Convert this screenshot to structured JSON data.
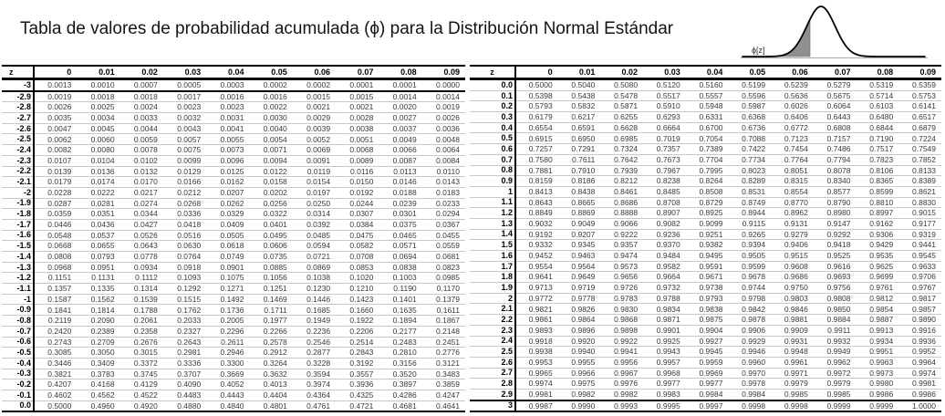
{
  "title": "Tabla de valores de probabilidad acumulada (ϕ) para la Distribución Normal Estándar",
  "curve": {
    "label": "ϕ[z]"
  },
  "tables": {
    "negative": {
      "headers": [
        "z",
        "0",
        "0.01",
        "0.02",
        "0.03",
        "0.04",
        "0.05",
        "0.06",
        "0.07",
        "0.08",
        "0.09"
      ],
      "rows": [
        {
          "z": "-3",
          "divider": "below",
          "v": [
            "0.0013",
            "0.0010",
            "0.0007",
            "0.0005",
            "0.0003",
            "0.0002",
            "0.0002",
            "0.0001",
            "0.0001",
            "0.0000"
          ]
        },
        {
          "z": "-2.9",
          "v": [
            "0.0019",
            "0.0018",
            "0.0018",
            "0.0017",
            "0.0016",
            "0.0016",
            "0.0015",
            "0.0015",
            "0.0014",
            "0.0014"
          ]
        },
        {
          "z": "-2.8",
          "v": [
            "0.0026",
            "0.0025",
            "0.0024",
            "0.0023",
            "0.0023",
            "0.0022",
            "0.0021",
            "0.0021",
            "0.0020",
            "0.0019"
          ]
        },
        {
          "z": "-2.7",
          "v": [
            "0.0035",
            "0.0034",
            "0.0033",
            "0.0032",
            "0.0031",
            "0.0030",
            "0.0029",
            "0.0028",
            "0.0027",
            "0.0026"
          ]
        },
        {
          "z": "-2.6",
          "v": [
            "0.0047",
            "0.0045",
            "0.0044",
            "0.0043",
            "0.0041",
            "0.0040",
            "0.0039",
            "0.0038",
            "0.0037",
            "0.0036"
          ]
        },
        {
          "z": "-2.5",
          "v": [
            "0.0062",
            "0.0060",
            "0.0059",
            "0.0057",
            "0.0055",
            "0.0054",
            "0.0052",
            "0.0051",
            "0.0049",
            "0.0048"
          ]
        },
        {
          "z": "-2.4",
          "v": [
            "0.0082",
            "0.0080",
            "0.0078",
            "0.0075",
            "0.0073",
            "0.0071",
            "0.0069",
            "0.0068",
            "0.0066",
            "0.0064"
          ]
        },
        {
          "z": "-2.3",
          "v": [
            "0.0107",
            "0.0104",
            "0.0102",
            "0.0099",
            "0.0096",
            "0.0094",
            "0.0091",
            "0.0089",
            "0.0087",
            "0.0084"
          ]
        },
        {
          "z": "-2.2",
          "v": [
            "0.0139",
            "0.0136",
            "0.0132",
            "0.0129",
            "0.0125",
            "0.0122",
            "0.0119",
            "0.0116",
            "0.0113",
            "0.0110"
          ]
        },
        {
          "z": "-2.1",
          "v": [
            "0.0179",
            "0.0174",
            "0.0170",
            "0.0166",
            "0.0162",
            "0.0158",
            "0.0154",
            "0.0150",
            "0.0146",
            "0.0143"
          ]
        },
        {
          "z": "-2",
          "v": [
            "0.0228",
            "0.0222",
            "0.0217",
            "0.0212",
            "0.0207",
            "0.0202",
            "0.0197",
            "0.0192",
            "0.0188",
            "0.0183"
          ]
        },
        {
          "z": "-1.9",
          "v": [
            "0.0287",
            "0.0281",
            "0.0274",
            "0.0268",
            "0.0262",
            "0.0256",
            "0.0250",
            "0.0244",
            "0.0239",
            "0.0233"
          ]
        },
        {
          "z": "-1.8",
          "v": [
            "0.0359",
            "0.0351",
            "0.0344",
            "0.0336",
            "0.0329",
            "0.0322",
            "0.0314",
            "0.0307",
            "0.0301",
            "0.0294"
          ]
        },
        {
          "z": "-1.7",
          "v": [
            "0.0446",
            "0.0436",
            "0.0427",
            "0.0418",
            "0.0409",
            "0.0401",
            "0.0392",
            "0.0384",
            "0.0375",
            "0.0367"
          ]
        },
        {
          "z": "-1.6",
          "v": [
            "0.0548",
            "0.0537",
            "0.0526",
            "0.0516",
            "0.0505",
            "0.0495",
            "0.0485",
            "0.0475",
            "0.0465",
            "0.0455"
          ]
        },
        {
          "z": "-1.5",
          "v": [
            "0.0668",
            "0.0655",
            "0.0643",
            "0.0630",
            "0.0618",
            "0.0606",
            "0.0594",
            "0.0582",
            "0.0571",
            "0.0559"
          ]
        },
        {
          "z": "-1.4",
          "v": [
            "0.0808",
            "0.0793",
            "0.0778",
            "0.0764",
            "0.0749",
            "0.0735",
            "0.0721",
            "0.0708",
            "0.0694",
            "0.0681"
          ]
        },
        {
          "z": "-1.3",
          "v": [
            "0.0968",
            "0.0951",
            "0.0934",
            "0.0918",
            "0.0901",
            "0.0885",
            "0.0869",
            "0.0853",
            "0.0838",
            "0.0823"
          ]
        },
        {
          "z": "-1.2",
          "v": [
            "0.1151",
            "0.1131",
            "0.1112",
            "0.1093",
            "0.1075",
            "0.1056",
            "0.1038",
            "0.1020",
            "0.1003",
            "0.0985"
          ]
        },
        {
          "z": "-1.1",
          "v": [
            "0.1357",
            "0.1335",
            "0.1314",
            "0.1292",
            "0.1271",
            "0.1251",
            "0.1230",
            "0.1210",
            "0.1190",
            "0.1170"
          ]
        },
        {
          "z": "-1",
          "v": [
            "0.1587",
            "0.1562",
            "0.1539",
            "0.1515",
            "0.1492",
            "0.1469",
            "0.1446",
            "0.1423",
            "0.1401",
            "0.1379"
          ]
        },
        {
          "z": "-0.9",
          "v": [
            "0.1841",
            "0.1814",
            "0.1788",
            "0.1762",
            "0.1736",
            "0.1711",
            "0.1685",
            "0.1660",
            "0.1635",
            "0.1611"
          ]
        },
        {
          "z": "-0.8",
          "v": [
            "0.2119",
            "0.2090",
            "0.2061",
            "0.2033",
            "0.2005",
            "0.1977",
            "0.1949",
            "0.1922",
            "0.1894",
            "0.1867"
          ]
        },
        {
          "z": "-0.7",
          "v": [
            "0.2420",
            "0.2389",
            "0.2358",
            "0.2327",
            "0.2296",
            "0.2266",
            "0.2236",
            "0.2206",
            "0.2177",
            "0.2148"
          ]
        },
        {
          "z": "-0.6",
          "v": [
            "0.2743",
            "0.2709",
            "0.2676",
            "0.2643",
            "0.2611",
            "0.2578",
            "0.2546",
            "0.2514",
            "0.2483",
            "0.2451"
          ]
        },
        {
          "z": "-0.5",
          "v": [
            "0.3085",
            "0.3050",
            "0.3015",
            "0.2981",
            "0.2946",
            "0.2912",
            "0.2877",
            "0.2843",
            "0.2810",
            "0.2776"
          ]
        },
        {
          "z": "-0.4",
          "v": [
            "0.3446",
            "0.3409",
            "0.3372",
            "0.3336",
            "0.3300",
            "0.3264",
            "0.3228",
            "0.3192",
            "0.3156",
            "0.3121"
          ]
        },
        {
          "z": "-0.3",
          "v": [
            "0.3821",
            "0.3783",
            "0.3745",
            "0.3707",
            "0.3669",
            "0.3632",
            "0.3594",
            "0.3557",
            "0.3520",
            "0.3483"
          ]
        },
        {
          "z": "-0.2",
          "v": [
            "0.4207",
            "0.4168",
            "0.4129",
            "0.4090",
            "0.4052",
            "0.4013",
            "0.3974",
            "0.3936",
            "0.3897",
            "0.3859"
          ]
        },
        {
          "z": "-0.1",
          "v": [
            "0.4602",
            "0.4562",
            "0.4522",
            "0.4483",
            "0.4443",
            "0.4404",
            "0.4364",
            "0.4325",
            "0.4286",
            "0.4247"
          ]
        },
        {
          "z": "0.0",
          "v": [
            "0.5000",
            "0.4960",
            "0.4920",
            "0.4880",
            "0.4840",
            "0.4801",
            "0.4761",
            "0.4721",
            "0.4681",
            "0.4641"
          ]
        }
      ]
    },
    "positive": {
      "headers": [
        "z",
        "0",
        "0.01",
        "0.02",
        "0.03",
        "0.04",
        "0.05",
        "0.06",
        "0.07",
        "0.08",
        "0.09"
      ],
      "rows": [
        {
          "z": "0.0",
          "v": [
            "0.5000",
            "0.5040",
            "0.5080",
            "0.5120",
            "0.5160",
            "0.5199",
            "0.5239",
            "0.5279",
            "0.5319",
            "0.5359"
          ]
        },
        {
          "z": "0.1",
          "v": [
            "0.5398",
            "0.5438",
            "0.5478",
            "0.5517",
            "0.5557",
            "0.5596",
            "0.5636",
            "0.5675",
            "0.5714",
            "0.5753"
          ]
        },
        {
          "z": "0.2",
          "v": [
            "0.5793",
            "0.5832",
            "0.5871",
            "0.5910",
            "0.5948",
            "0.5987",
            "0.6026",
            "0.6064",
            "0.6103",
            "0.6141"
          ]
        },
        {
          "z": "0.3",
          "v": [
            "0.6179",
            "0.6217",
            "0.6255",
            "0.6293",
            "0.6331",
            "0.6368",
            "0.6406",
            "0.6443",
            "0.6480",
            "0.6517"
          ]
        },
        {
          "z": "0.4",
          "v": [
            "0.6554",
            "0.6591",
            "0.6628",
            "0.6664",
            "0.6700",
            "0.6736",
            "0.6772",
            "0.6808",
            "0.6844",
            "0.6879"
          ]
        },
        {
          "z": "0.5",
          "v": [
            "0.6915",
            "0.6950",
            "0.6985",
            "0.7019",
            "0.7054",
            "0.7088",
            "0.7123",
            "0.7157",
            "0.7190",
            "0.7224"
          ]
        },
        {
          "z": "0.6",
          "v": [
            "0.7257",
            "0.7291",
            "0.7324",
            "0.7357",
            "0.7389",
            "0.7422",
            "0.7454",
            "0.7486",
            "0.7517",
            "0.7549"
          ]
        },
        {
          "z": "0.7",
          "v": [
            "0.7580",
            "0.7611",
            "0.7642",
            "0.7673",
            "0.7704",
            "0.7734",
            "0.7764",
            "0.7794",
            "0.7823",
            "0.7852"
          ]
        },
        {
          "z": "0.8",
          "v": [
            "0.7881",
            "0.7910",
            "0.7939",
            "0.7967",
            "0.7995",
            "0.8023",
            "0.8051",
            "0.8078",
            "0.8106",
            "0.8133"
          ]
        },
        {
          "z": "0.9",
          "v": [
            "0.8159",
            "0.8186",
            "0.8212",
            "0.8238",
            "0.8264",
            "0.8289",
            "0.8315",
            "0.8340",
            "0.8365",
            "0.8389"
          ]
        },
        {
          "z": "1",
          "v": [
            "0.8413",
            "0.8438",
            "0.8461",
            "0.8485",
            "0.8508",
            "0.8531",
            "0.8554",
            "0.8577",
            "0.8599",
            "0.8621"
          ]
        },
        {
          "z": "1.1",
          "v": [
            "0.8643",
            "0.8665",
            "0.8686",
            "0.8708",
            "0.8729",
            "0.8749",
            "0.8770",
            "0.8790",
            "0.8810",
            "0.8830"
          ]
        },
        {
          "z": "1.2",
          "v": [
            "0.8849",
            "0.8869",
            "0.8888",
            "0.8907",
            "0.8925",
            "0.8944",
            "0.8962",
            "0.8980",
            "0.8997",
            "0.9015"
          ]
        },
        {
          "z": "1.3",
          "v": [
            "0.9032",
            "0.9049",
            "0.9066",
            "0.9082",
            "0.9099",
            "0.9115",
            "0.9131",
            "0.9147",
            "0.9162",
            "0.9177"
          ]
        },
        {
          "z": "1.4",
          "v": [
            "0.9192",
            "0.9207",
            "0.9222",
            "0.9236",
            "0.9251",
            "0.9265",
            "0.9279",
            "0.9292",
            "0.9306",
            "0.9319"
          ]
        },
        {
          "z": "1.5",
          "v": [
            "0.9332",
            "0.9345",
            "0.9357",
            "0.9370",
            "0.9382",
            "0.9394",
            "0.9406",
            "0.9418",
            "0.9429",
            "0.9441"
          ]
        },
        {
          "z": "1.6",
          "v": [
            "0.9452",
            "0.9463",
            "0.9474",
            "0.9484",
            "0.9495",
            "0.9505",
            "0.9515",
            "0.9525",
            "0.9535",
            "0.9545"
          ]
        },
        {
          "z": "1.7",
          "v": [
            "0.9554",
            "0.9564",
            "0.9573",
            "0.9582",
            "0.9591",
            "0.9599",
            "0.9608",
            "0.9616",
            "0.9625",
            "0.9633"
          ]
        },
        {
          "z": "1.8",
          "v": [
            "0.9641",
            "0.9649",
            "0.9656",
            "0.9664",
            "0.9671",
            "0.9678",
            "0.9686",
            "0.9693",
            "0.9699",
            "0.9706"
          ]
        },
        {
          "z": "1.9",
          "v": [
            "0.9713",
            "0.9719",
            "0.9726",
            "0.9732",
            "0.9738",
            "0.9744",
            "0.9750",
            "0.9756",
            "0.9761",
            "0.9767"
          ]
        },
        {
          "z": "2",
          "v": [
            "0.9772",
            "0.9778",
            "0.9783",
            "0.9788",
            "0.9793",
            "0.9798",
            "0.9803",
            "0.9808",
            "0.9812",
            "0.9817"
          ]
        },
        {
          "z": "2.1",
          "v": [
            "0.9821",
            "0.9826",
            "0.9830",
            "0.9834",
            "0.9838",
            "0.9842",
            "0.9846",
            "0.9850",
            "0.9854",
            "0.9857"
          ]
        },
        {
          "z": "2.2",
          "v": [
            "0.9861",
            "0.9864",
            "0.9868",
            "0.9871",
            "0.9875",
            "0.9878",
            "0.9881",
            "0.9884",
            "0.9887",
            "0.9890"
          ]
        },
        {
          "z": "2.3",
          "v": [
            "0.9893",
            "0.9896",
            "0.9898",
            "0.9901",
            "0.9904",
            "0.9906",
            "0.9909",
            "0.9911",
            "0.9913",
            "0.9916"
          ]
        },
        {
          "z": "2.4",
          "v": [
            "0.9918",
            "0.9920",
            "0.9922",
            "0.9925",
            "0.9927",
            "0.9929",
            "0.9931",
            "0.9932",
            "0.9934",
            "0.9936"
          ]
        },
        {
          "z": "2.5",
          "v": [
            "0.9938",
            "0.9940",
            "0.9941",
            "0.9943",
            "0.9945",
            "0.9946",
            "0.9948",
            "0.9949",
            "0.9951",
            "0.9952"
          ]
        },
        {
          "z": "2.6",
          "v": [
            "0.9953",
            "0.9955",
            "0.9956",
            "0.9957",
            "0.9959",
            "0.9960",
            "0.9961",
            "0.9962",
            "0.9963",
            "0.9964"
          ]
        },
        {
          "z": "2.7",
          "v": [
            "0.9965",
            "0.9966",
            "0.9967",
            "0.9968",
            "0.9969",
            "0.9970",
            "0.9971",
            "0.9972",
            "0.9973",
            "0.9974"
          ]
        },
        {
          "z": "2.8",
          "v": [
            "0.9974",
            "0.9975",
            "0.9976",
            "0.9977",
            "0.9977",
            "0.9978",
            "0.9979",
            "0.9979",
            "0.9980",
            "0.9981"
          ]
        },
        {
          "z": "2.9",
          "v": [
            "0.9981",
            "0.9982",
            "0.9982",
            "0.9983",
            "0.9984",
            "0.9984",
            "0.9985",
            "0.9985",
            "0.9986",
            "0.9986"
          ]
        },
        {
          "z": "3",
          "divider": "above",
          "v": [
            "0.9987",
            "0.9990",
            "0.9993",
            "0.9995",
            "0.9997",
            "0.9998",
            "0.9998",
            "0.9999",
            "0.9999",
            "1.0000"
          ]
        }
      ]
    }
  }
}
